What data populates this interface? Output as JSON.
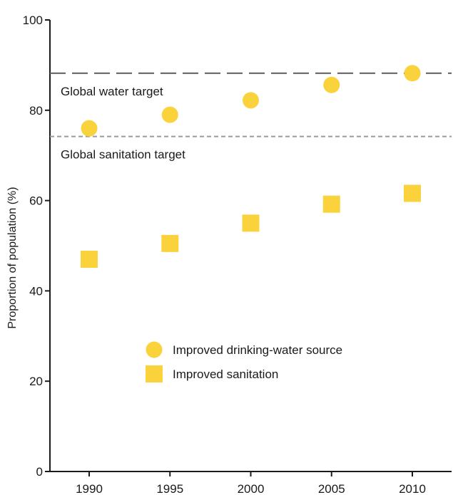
{
  "chart_data": {
    "type": "scatter",
    "x": [
      1990,
      1995,
      2000,
      2005,
      2010
    ],
    "xlabel": "",
    "ylabel": "Proportion of population (%)",
    "ylim": [
      0,
      100
    ],
    "yticks": [
      0,
      20,
      40,
      60,
      80,
      100
    ],
    "grid": false,
    "series": [
      {
        "name": "Improved drinking-water source",
        "marker": "circle",
        "color": "#F9D23C",
        "values": [
          76,
          79,
          82.2,
          85.6,
          88.2
        ]
      },
      {
        "name": "Improved sanitation",
        "marker": "square",
        "color": "#F9D23C",
        "values": [
          47,
          50.5,
          55,
          59.2,
          61.6
        ]
      }
    ],
    "reference_lines": [
      {
        "label": "Global water target",
        "value": 88.2,
        "style": "long-dash",
        "color": "#666666"
      },
      {
        "label": "Global sanitation target",
        "value": 74.2,
        "style": "short-dash",
        "color": "#9a9a9a"
      }
    ],
    "legend_position": "center"
  }
}
